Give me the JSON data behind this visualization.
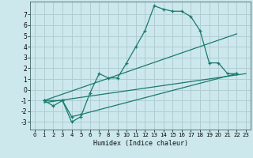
{
  "title": "",
  "xlabel": "Humidex (Indice chaleur)",
  "bg_color": "#cce8ec",
  "grid_color": "#b0cdd2",
  "line_color": "#1a7a6e",
  "xlim": [
    -0.5,
    23.5
  ],
  "ylim": [
    -3.7,
    8.2
  ],
  "yticks": [
    -3,
    -2,
    -1,
    0,
    1,
    2,
    3,
    4,
    5,
    6,
    7
  ],
  "xticks": [
    0,
    1,
    2,
    3,
    4,
    5,
    6,
    7,
    8,
    9,
    10,
    11,
    12,
    13,
    14,
    15,
    16,
    17,
    18,
    19,
    20,
    21,
    22,
    23
  ],
  "line1_x": [
    1,
    2,
    3,
    4,
    5,
    6,
    7,
    8,
    9,
    10,
    11,
    12,
    13,
    14,
    15,
    16,
    17,
    18,
    19,
    20,
    21,
    22
  ],
  "line1_y": [
    -1.0,
    -1.5,
    -1.0,
    -3.0,
    -2.5,
    -0.3,
    1.5,
    1.1,
    1.1,
    2.5,
    4.0,
    5.5,
    7.8,
    7.5,
    7.3,
    7.3,
    6.8,
    5.5,
    2.5,
    2.5,
    1.5,
    1.5
  ],
  "line2_x": [
    1,
    3,
    4,
    5,
    22
  ],
  "line2_y": [
    -1.0,
    -1.0,
    -2.5,
    -2.3,
    1.5
  ],
  "line3_x": [
    1,
    23
  ],
  "line3_y": [
    -1.2,
    1.5
  ],
  "line4_x": [
    1,
    22
  ],
  "line4_y": [
    -1.0,
    5.2
  ]
}
